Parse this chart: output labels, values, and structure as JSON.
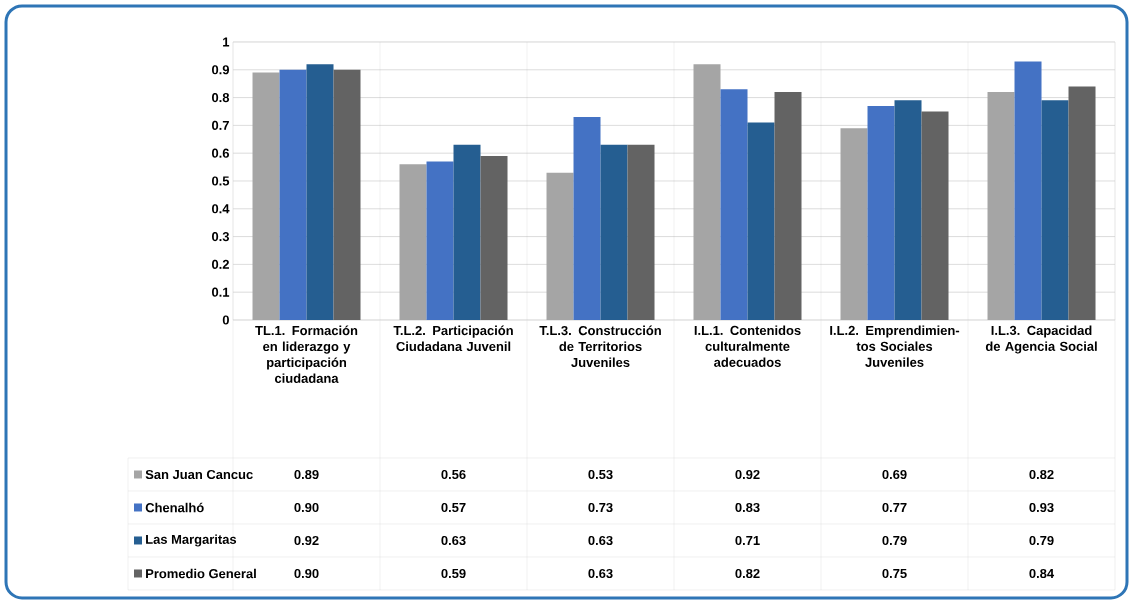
{
  "chart_data": {
    "type": "bar",
    "categories": [
      "TL.1. Formación en liderazgo y participación ciudadana",
      "T.L.2. Participación Ciudadana Juvenil",
      "T.L.3. Construcción de Territorios Juveniles",
      "I.L.1. Contenidos culturalmente adecuados",
      "I.L.2. Emprendimien-tos Sociales Juveniles",
      "I.L.3. Capacidad de Agencia Social"
    ],
    "series": [
      {
        "name": "San Juan Cancuc",
        "color": "#a5a5a5",
        "values": [
          0.89,
          0.56,
          0.53,
          0.92,
          0.69,
          0.82
        ],
        "value_labels": [
          "0.89",
          "0.56",
          "0.53",
          "0.92",
          "0.69",
          "0.82"
        ]
      },
      {
        "name": "Chenalhó",
        "color": "#4472c4",
        "values": [
          0.9,
          0.57,
          0.73,
          0.83,
          0.77,
          0.93
        ],
        "value_labels": [
          "0.90",
          "0.57",
          "0.73",
          "0.83",
          "0.77",
          "0.93"
        ]
      },
      {
        "name": "Las Margaritas",
        "color": "#255e91",
        "values": [
          0.92,
          0.63,
          0.63,
          0.71,
          0.79,
          0.79
        ],
        "value_labels": [
          "0.92",
          "0.63",
          "0.63",
          "0.71",
          "0.79",
          "0.79"
        ]
      },
      {
        "name": "Promedio General",
        "color": "#636363",
        "values": [
          0.9,
          0.59,
          0.63,
          0.82,
          0.75,
          0.84
        ],
        "value_labels": [
          "0.90",
          "0.59",
          "0.63",
          "0.82",
          "0.75",
          "0.84"
        ]
      }
    ],
    "ylim": [
      0,
      1
    ],
    "yticks": [
      0,
      0.1,
      0.2,
      0.3,
      0.4,
      0.5,
      0.6,
      0.7,
      0.8,
      0.9,
      1
    ],
    "grid": "y",
    "legend": "bottom"
  }
}
